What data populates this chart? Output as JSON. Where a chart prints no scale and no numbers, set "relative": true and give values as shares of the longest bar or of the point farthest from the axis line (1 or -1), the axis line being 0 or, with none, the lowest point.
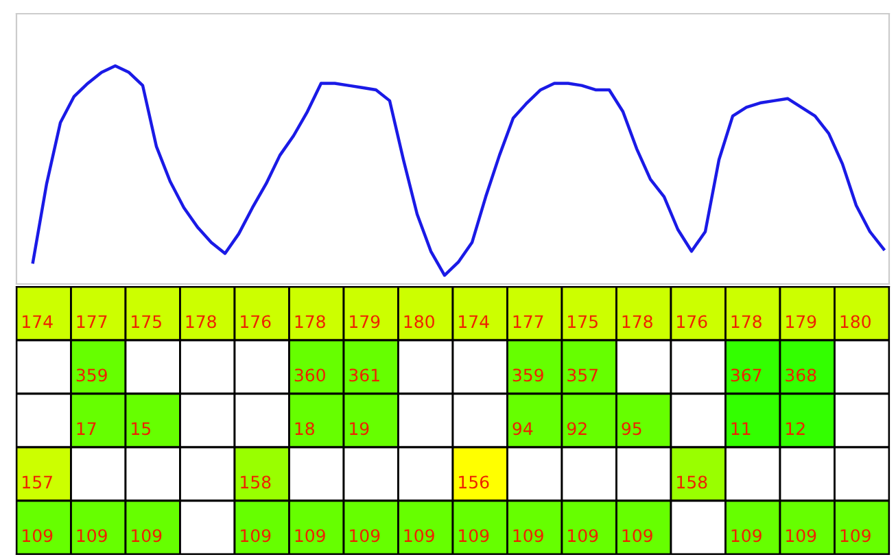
{
  "chart_data": [
    {
      "type": "line",
      "relative": true,
      "grid": false,
      "marker": "none",
      "line_style": "solid",
      "categories": [
        null,
        null,
        null,
        null,
        null,
        null,
        null,
        null,
        null,
        null,
        null,
        null,
        null,
        null,
        null,
        null,
        null,
        null,
        null,
        null,
        null,
        null,
        null,
        null,
        null,
        null,
        null,
        null,
        null,
        null,
        null,
        null,
        null,
        null,
        null,
        null,
        null,
        null,
        null,
        null,
        null,
        null,
        null,
        null,
        null,
        null,
        null,
        null,
        null,
        null,
        null,
        null,
        null,
        null,
        null,
        null,
        null,
        null,
        null,
        null,
        null,
        null,
        null
      ],
      "series": [
        {
          "color": "#1a1ae6",
          "values": [
            0.1,
            0.46,
            0.74,
            0.86,
            0.92,
            0.97,
            1.0,
            0.97,
            0.91,
            0.63,
            0.47,
            0.35,
            0.26,
            0.19,
            0.14,
            0.23,
            0.35,
            0.46,
            0.59,
            0.68,
            0.79,
            0.92,
            0.92,
            0.91,
            0.9,
            0.89,
            0.84,
            0.57,
            0.32,
            0.15,
            0.04,
            0.1,
            0.19,
            0.4,
            0.59,
            0.76,
            0.83,
            0.89,
            0.92,
            0.92,
            0.91,
            0.89,
            0.89,
            0.79,
            0.62,
            0.48,
            0.4,
            0.25,
            0.15,
            0.24,
            0.57,
            0.77,
            0.81,
            0.83,
            0.84,
            0.85,
            0.81,
            0.77,
            0.69,
            0.55,
            0.36,
            0.24,
            0.16
          ]
        }
      ]
    },
    {
      "type": "heatmap",
      "categories": [
        null,
        null,
        null,
        null,
        null,
        null,
        null,
        null,
        null,
        null,
        null,
        null,
        null,
        null,
        null,
        null
      ],
      "y_categories": [
        null,
        null,
        null,
        null,
        null
      ],
      "cells": [
        [
          174,
          177,
          175,
          178,
          176,
          178,
          179,
          180,
          174,
          177,
          175,
          178,
          176,
          178,
          179,
          180
        ],
        [
          null,
          359,
          null,
          null,
          null,
          360,
          361,
          null,
          null,
          359,
          357,
          null,
          null,
          367,
          368,
          null
        ],
        [
          null,
          17,
          15,
          null,
          null,
          18,
          19,
          null,
          null,
          94,
          92,
          95,
          null,
          11,
          12,
          null
        ],
        [
          157,
          null,
          null,
          null,
          158,
          null,
          null,
          null,
          156,
          null,
          null,
          null,
          158,
          null,
          null,
          null
        ],
        [
          109,
          109,
          109,
          null,
          109,
          109,
          109,
          109,
          109,
          109,
          109,
          109,
          null,
          109,
          109,
          109
        ]
      ],
      "colors": [
        [
          "#ccff00",
          "#ccff00",
          "#ccff00",
          "#ccff00",
          "#ccff00",
          "#ccff00",
          "#ccff00",
          "#ccff00",
          "#ccff00",
          "#ccff00",
          "#ccff00",
          "#ccff00",
          "#ccff00",
          "#ccff00",
          "#ccff00",
          "#ccff00"
        ],
        [
          null,
          "#66ff00",
          null,
          null,
          null,
          "#66ff00",
          "#66ff00",
          null,
          null,
          "#66ff00",
          "#66ff00",
          null,
          null,
          "#33ff00",
          "#33ff00",
          null
        ],
        [
          null,
          "#66ff00",
          "#66ff00",
          null,
          null,
          "#66ff00",
          "#66ff00",
          null,
          null,
          "#66ff00",
          "#66ff00",
          "#66ff00",
          null,
          "#33ff00",
          "#33ff00",
          null
        ],
        [
          "#ccff00",
          null,
          null,
          null,
          "#99ff00",
          null,
          null,
          null,
          "#ffff00",
          null,
          null,
          null,
          "#99ff00",
          null,
          null,
          null
        ],
        [
          "#66ff00",
          "#66ff00",
          "#66ff00",
          null,
          "#66ff00",
          "#66ff00",
          "#66ff00",
          "#66ff00",
          "#66ff00",
          "#66ff00",
          "#66ff00",
          "#66ff00",
          null,
          "#66ff00",
          "#66ff00",
          "#66ff00"
        ]
      ],
      "data_labels": true
    }
  ]
}
